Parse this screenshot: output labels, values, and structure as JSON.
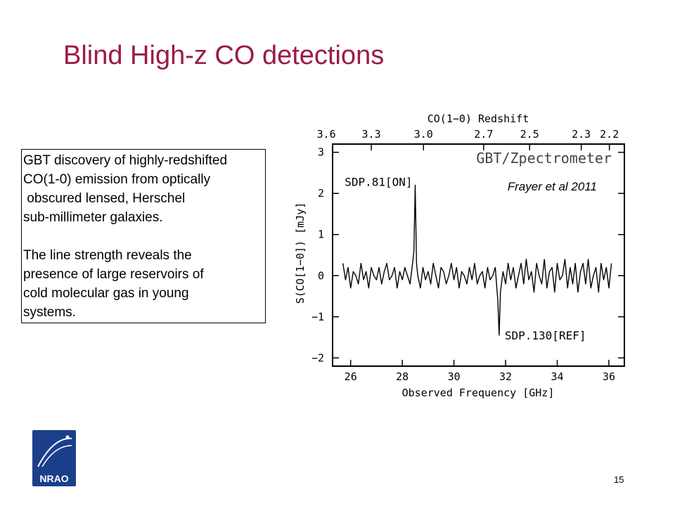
{
  "slide": {
    "title": "Blind High-z CO detections",
    "page_number": "15",
    "logo_text": "NRAO"
  },
  "textbox": {
    "paragraph1": [
      "GBT discovery of highly-redshifted",
      "CO(1-0) emission from optically",
      " obscured lensed, Herschel",
      "sub-millimeter galaxies."
    ],
    "paragraph2": [
      "The line strength reveals the",
      "presence of large reservoirs of",
      "cold molecular gas in young",
      "systems."
    ]
  },
  "chart_data": {
    "type": "line",
    "title": "",
    "instrument_label": "GBT/Zpectrometer",
    "citation": "Frayer et al 2011",
    "xlabel": "Observed Frequency [GHz]",
    "ylabel": "S(CO[1−0]) [mJy]",
    "top_axis_label": "CO(1−0) Redshift",
    "xlim": [
      25.3,
      36.6
    ],
    "ylim": [
      -2.2,
      3.2
    ],
    "x_ticks": [
      26,
      28,
      30,
      32,
      34,
      36
    ],
    "y_ticks": [
      -2,
      -1,
      0,
      1,
      2,
      3
    ],
    "y_tick_labels": [
      "−2",
      "−1",
      "0",
      "1",
      "2",
      "3"
    ],
    "top_ticks": [
      {
        "z": "3.6",
        "freq": 25.06
      },
      {
        "z": "3.3",
        "freq": 26.8
      },
      {
        "z": "3.0",
        "freq": 28.82
      },
      {
        "z": "2.7",
        "freq": 31.15
      },
      {
        "z": "2.5",
        "freq": 32.93
      },
      {
        "z": "2.3",
        "freq": 34.93
      },
      {
        "z": "2.2",
        "freq": 36.02
      }
    ],
    "annotations": [
      {
        "text": "SDP.81[ON]",
        "x": 28.5,
        "y": 2.15
      },
      {
        "text": "SDP.130[REF]",
        "x": 31.75,
        "y": -1.45
      }
    ],
    "series": [
      {
        "x": [
          25.7,
          25.8,
          25.9,
          26.0,
          26.1,
          26.2,
          26.3,
          26.4,
          26.5,
          26.6,
          26.7,
          26.8,
          26.9,
          27.0,
          27.1,
          27.2,
          27.3,
          27.4,
          27.5,
          27.6,
          27.7,
          27.8,
          27.9,
          28.0,
          28.1,
          28.2,
          28.3,
          28.4,
          28.45,
          28.5,
          28.55,
          28.6,
          28.7,
          28.8,
          28.9,
          29.0,
          29.1,
          29.2,
          29.3,
          29.4,
          29.5,
          29.6,
          29.7,
          29.8,
          29.9,
          30.0,
          30.1,
          30.2,
          30.3,
          30.4,
          30.5,
          30.6,
          30.7,
          30.8,
          30.9,
          31.0,
          31.1,
          31.2,
          31.3,
          31.4,
          31.5,
          31.6,
          31.7,
          31.75,
          31.8,
          31.9,
          32.0,
          32.1,
          32.2,
          32.3,
          32.4,
          32.5,
          32.6,
          32.7,
          32.8,
          32.9,
          33.0,
          33.1,
          33.2,
          33.3,
          33.4,
          33.5,
          33.6,
          33.7,
          33.8,
          33.9,
          34.0,
          34.1,
          34.2,
          34.3,
          34.4,
          34.5,
          34.6,
          34.7,
          34.8,
          34.9,
          35.0,
          35.1,
          35.2,
          35.3,
          35.4,
          35.5,
          35.6,
          35.7,
          35.8,
          35.9,
          36.0,
          36.1
        ],
        "y": [
          0.3,
          -0.1,
          0.2,
          -0.3,
          0.1,
          0.0,
          -0.2,
          0.3,
          -0.1,
          0.1,
          -0.3,
          0.2,
          0.0,
          -0.1,
          0.2,
          -0.2,
          0.1,
          0.3,
          -0.1,
          0.0,
          0.2,
          -0.3,
          0.1,
          -0.1,
          0.2,
          0.0,
          -0.2,
          0.3,
          0.6,
          2.2,
          0.3,
          0.0,
          -0.3,
          0.2,
          -0.1,
          0.1,
          -0.2,
          0.3,
          0.0,
          -0.3,
          0.2,
          0.1,
          -0.2,
          0.0,
          0.3,
          -0.1,
          0.2,
          -0.3,
          0.1,
          0.0,
          -0.2,
          0.2,
          -0.1,
          0.3,
          -0.2,
          0.0,
          0.1,
          -0.3,
          0.2,
          -0.1,
          0.0,
          0.2,
          -0.6,
          -1.45,
          -0.4,
          0.1,
          -0.2,
          0.3,
          -0.1,
          0.2,
          -0.3,
          0.0,
          0.3,
          -0.2,
          0.4,
          -0.1,
          0.1,
          -0.4,
          0.3,
          0.0,
          -0.2,
          0.4,
          -0.3,
          0.1,
          0.2,
          -0.4,
          0.3,
          -0.1,
          0.0,
          0.4,
          -0.3,
          0.2,
          -0.2,
          0.3,
          -0.4,
          0.1,
          0.3,
          -0.2,
          0.4,
          -0.3,
          0.0,
          0.2,
          -0.4,
          0.3,
          -0.1,
          0.2,
          -0.3,
          0.3
        ]
      }
    ]
  }
}
